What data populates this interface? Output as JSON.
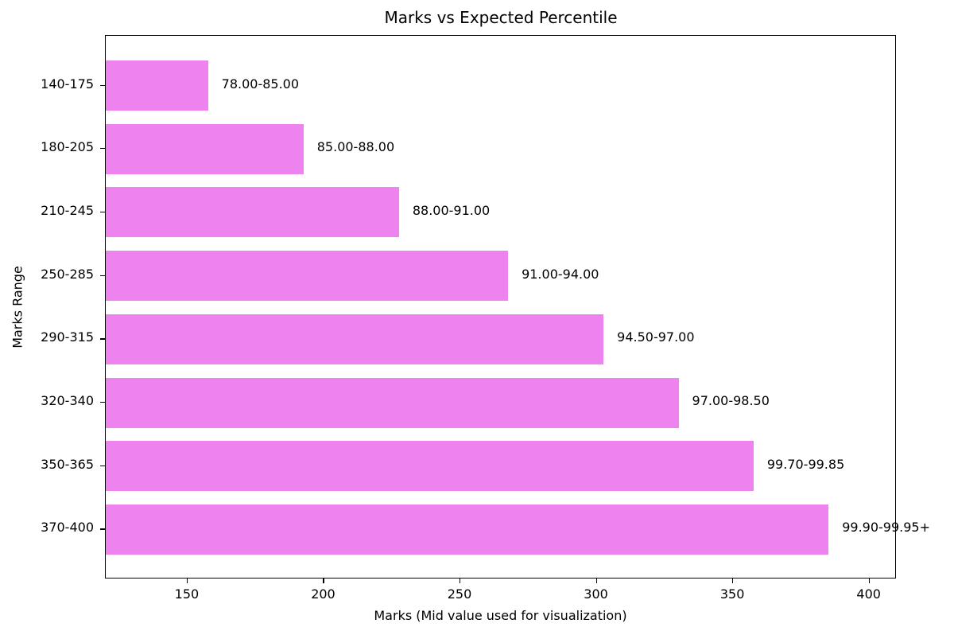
{
  "chart_data": {
    "type": "bar",
    "orientation": "horizontal",
    "title": "Marks vs Expected Percentile",
    "xlabel": "Marks (Mid value used for visualization)",
    "ylabel": "Marks Range",
    "xlim": [
      120,
      410
    ],
    "xticks": [
      150,
      200,
      250,
      300,
      350,
      400
    ],
    "categories": [
      "140-175",
      "180-205",
      "210-245",
      "250-285",
      "290-315",
      "320-340",
      "350-365",
      "370-400"
    ],
    "values": [
      157.5,
      192.5,
      227.5,
      267.5,
      302.5,
      330,
      357.5,
      385
    ],
    "bar_labels": [
      "78.00-85.00",
      "85.00-88.00",
      "88.00-91.00",
      "91.00-94.00",
      "94.50-97.00",
      "97.00-98.50",
      "99.70-99.85",
      "99.90-99.95+"
    ],
    "bar_color": "#ee82ee",
    "grid": false,
    "legend": null
  }
}
